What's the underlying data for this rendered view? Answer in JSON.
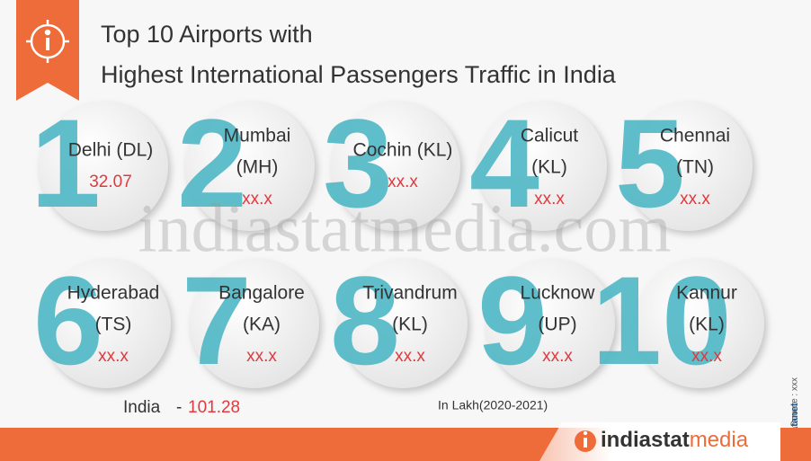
{
  "header": {
    "title_lines": [
      "Top 10 Airports with",
      "Highest International Passengers Traffic in India"
    ]
  },
  "airports": [
    {
      "rank": 1,
      "lines": [
        "Delhi (DL)"
      ],
      "value": "32.07"
    },
    {
      "rank": 2,
      "lines": [
        "Mumbai",
        "(MH)"
      ],
      "value": "xx.x"
    },
    {
      "rank": 3,
      "lines": [
        "Cochin (KL)"
      ],
      "value": "xx.x"
    },
    {
      "rank": 4,
      "lines": [
        "Calicut",
        "(KL)"
      ],
      "value": "xx.x"
    },
    {
      "rank": 5,
      "lines": [
        "Chennai",
        "(TN)"
      ],
      "value": "xx.x"
    },
    {
      "rank": 6,
      "lines": [
        "Hyderabad",
        "(TS)"
      ],
      "value": "xx.x"
    },
    {
      "rank": 7,
      "lines": [
        "Bangalore",
        "(KA)"
      ],
      "value": "xx.x"
    },
    {
      "rank": 8,
      "lines": [
        "Trivandrum",
        "(KL)"
      ],
      "value": "xx.x"
    },
    {
      "rank": 9,
      "lines": [
        "Lucknow",
        "(UP)"
      ],
      "value": "xx.x"
    },
    {
      "rank": 10,
      "lines": [
        "Kannur",
        "(KL)"
      ],
      "value": "xx.x"
    }
  ],
  "total": {
    "label": "India",
    "separator": "-",
    "value": "101.28"
  },
  "unit_note": "In Lakh(2020-2021)",
  "source": "Source : xxx",
  "credit": "© Datanet",
  "watermark": "indiastatmedia.com",
  "footer_brand": {
    "part1": "indiastat",
    "part2": "media"
  }
}
